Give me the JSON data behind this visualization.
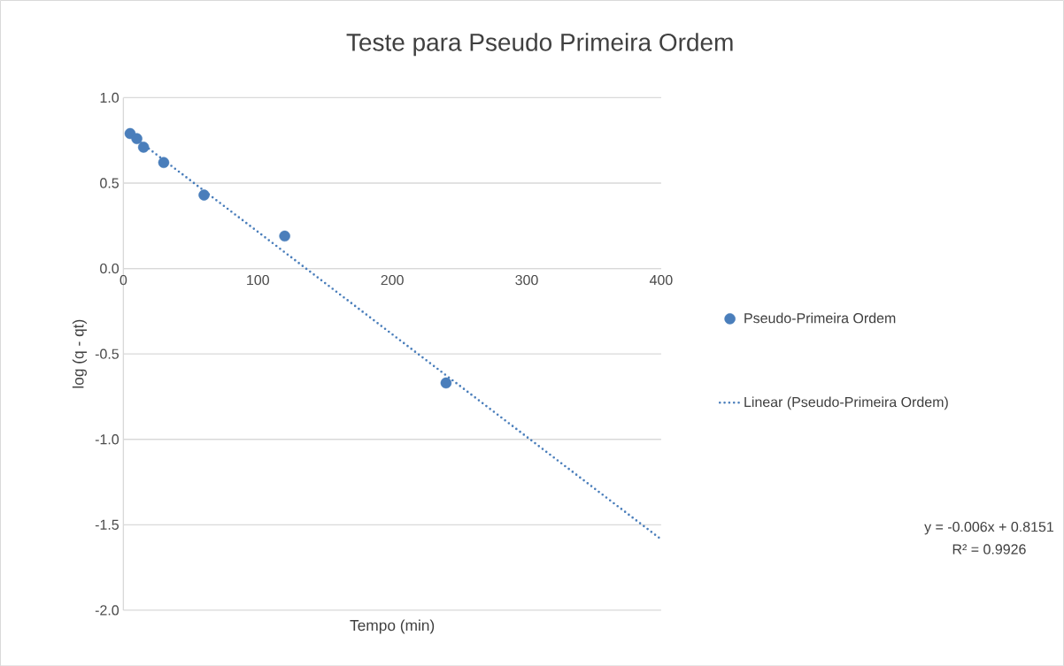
{
  "chart_data": {
    "type": "scatter",
    "title": "Teste para Pseudo Primeira Ordem",
    "xlabel": "Tempo (min)",
    "ylabel": "log (q - qt)",
    "series": [
      {
        "name": "Pseudo-Primeira Ordem",
        "type": "scatter",
        "color": "#4a7ebb",
        "marker": "circle",
        "x": [
          5,
          10,
          15,
          30,
          60,
          120,
          240
        ],
        "values": [
          0.79,
          0.76,
          0.71,
          0.62,
          0.43,
          0.19,
          -0.67
        ]
      },
      {
        "name": "Linear (Pseudo-Primeira Ordem)",
        "type": "line",
        "color": "#4a7ebb",
        "marker": "none",
        "line_style": "dotted",
        "x": [
          5,
          400
        ],
        "values": [
          0.785,
          -1.585
        ]
      }
    ],
    "xlim": [
      0,
      400
    ],
    "ylim": [
      -2,
      1
    ],
    "xticks": [
      0,
      100,
      200,
      300,
      400
    ],
    "yticks": [
      {
        "value": -2,
        "label": "-2.0"
      },
      {
        "value": -1.5,
        "label": "-1.5"
      },
      {
        "value": -1,
        "label": "-1.0"
      },
      {
        "value": -0.5,
        "label": "-0.5"
      },
      {
        "value": 0,
        "label": "0.0"
      },
      {
        "value": 0.5,
        "label": "0.5"
      },
      {
        "value": 1,
        "label": "1.0"
      }
    ],
    "grid": "y",
    "legend": "right",
    "annotations": [
      "y = -0.006x + 0.8151",
      "R² = 0.9926"
    ]
  }
}
